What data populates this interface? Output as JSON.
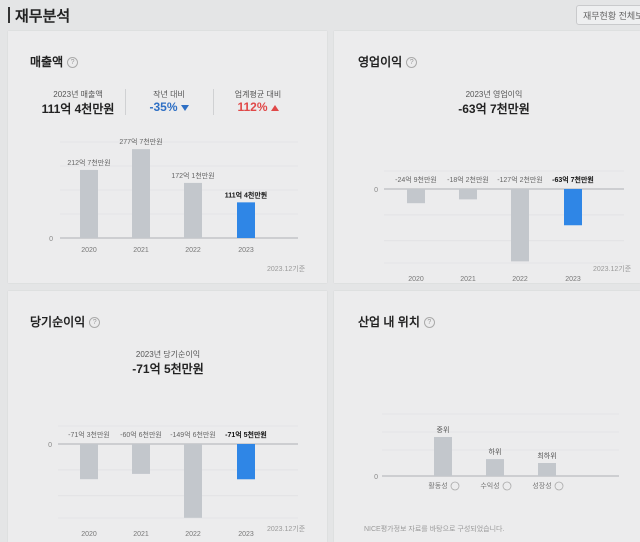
{
  "header": {
    "title": "재무분석",
    "link": "재무현황 전체보기"
  },
  "colors": {
    "bar": "#c3c7cc",
    "highlight": "#2f86e6",
    "down": "#2e6fc4",
    "up": "#e04848"
  },
  "revenue": {
    "title": "매출액",
    "help": "?",
    "stats": [
      {
        "label": "2023년 매출액",
        "value": "111억 4천만원"
      },
      {
        "label": "작년 대비",
        "value": "-35%"
      },
      {
        "label": "업계평균 대비",
        "value": "112%"
      }
    ],
    "note": "2023.12기준"
  },
  "operating_income": {
    "title": "영업이익",
    "help": "?",
    "summary_label": "2023년 영업이익",
    "summary_value": "-63억 7천만원",
    "note": "2023.12기준"
  },
  "net_income": {
    "title": "당기순이익",
    "help": "?",
    "summary_label": "2023년 당기순이익",
    "summary_value": "-71억 5천만원",
    "note": "2023.12기준"
  },
  "industry_position": {
    "title": "산업 내 위치",
    "help": "?",
    "note": "NICE평가정보 자료를 바탕으로 구성되었습니다."
  },
  "chart_data": [
    {
      "type": "bar",
      "title": "매출액",
      "categories": [
        "2020",
        "2021",
        "2022",
        "2023"
      ],
      "values": [
        212.7,
        277.7,
        172.1,
        111.4
      ],
      "data_labels": [
        "212억 7천만원",
        "277억 7천만원",
        "172억 1천만원",
        "111억 4천만원"
      ],
      "highlight_index": 3,
      "ylim": [
        0,
        300
      ],
      "y_ticks": [
        "0"
      ],
      "unit": "억원"
    },
    {
      "type": "bar",
      "title": "영업이익",
      "categories": [
        "2020",
        "2021",
        "2022",
        "2023"
      ],
      "values": [
        -24.9,
        -18.2,
        -127.2,
        -63.7
      ],
      "data_labels": [
        "-24억 9천만원",
        "-18억 2천만원",
        "-127억 2천만원",
        "-63억 7천만원"
      ],
      "highlight_index": 3,
      "ylim": [
        -130,
        0
      ],
      "y_ticks": [
        "0"
      ],
      "unit": "억원"
    },
    {
      "type": "bar",
      "title": "당기순이익",
      "categories": [
        "2020",
        "2021",
        "2022",
        "2023"
      ],
      "values": [
        -71.3,
        -60.6,
        -149.6,
        -71.5
      ],
      "data_labels": [
        "-71억 3천만원",
        "-60억 6천만원",
        "-149억 6천만원",
        "-71억 5천만원"
      ],
      "highlight_index": 3,
      "ylim": [
        -150,
        0
      ],
      "y_ticks": [
        "0"
      ],
      "unit": "억원"
    },
    {
      "type": "bar",
      "title": "산업 내 위치",
      "categories": [
        "활동성",
        "수익성",
        "성장성"
      ],
      "levels": [
        "중위",
        "하위",
        "최하위"
      ],
      "values": [
        3,
        1.3,
        1
      ],
      "y_ticks": [
        "0"
      ]
    }
  ]
}
